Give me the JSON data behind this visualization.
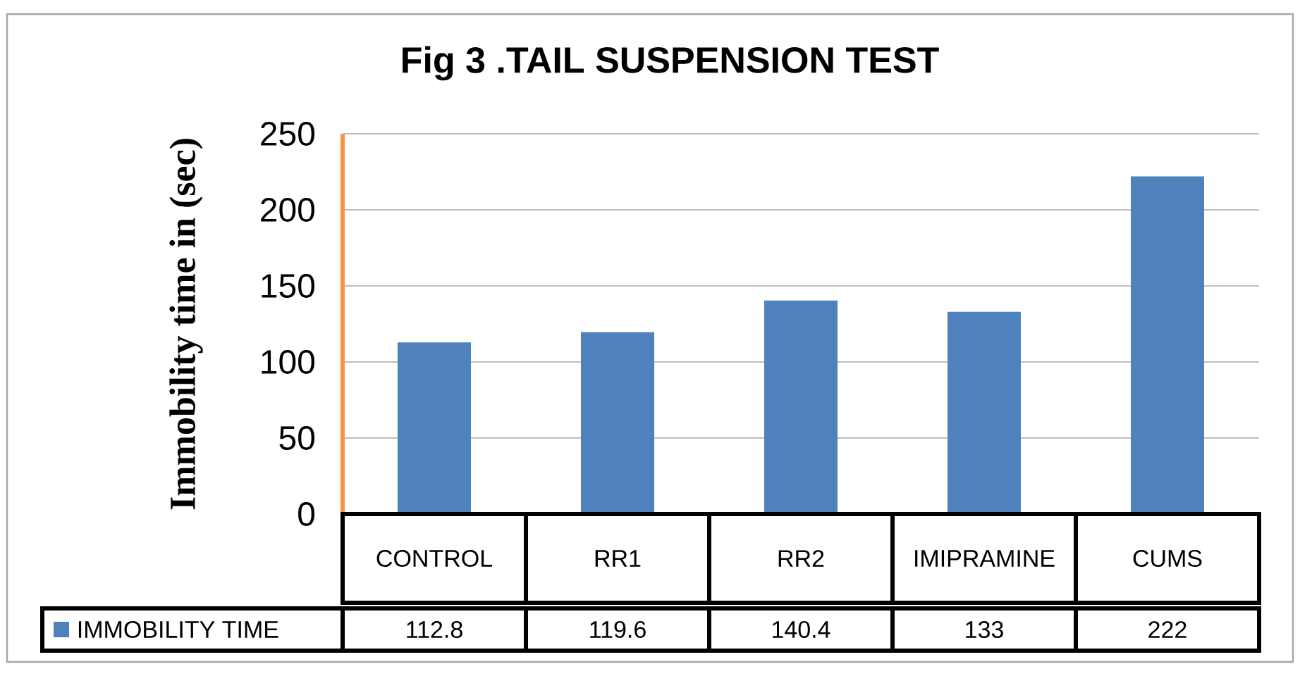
{
  "chart_data": {
    "type": "bar",
    "title": "Fig 3 .TAIL SUSPENSION TEST",
    "ylabel": "Immobility time in (sec)",
    "categories": [
      "CONTROL",
      "RR1",
      "RR2",
      "IMIPRAMINE",
      "CUMS"
    ],
    "series": [
      {
        "name": "IMMOBILITY TIME",
        "color": "#4f81bd",
        "values": [
          112.8,
          119.6,
          140.4,
          133,
          222
        ]
      }
    ],
    "ylim": [
      0,
      250
    ],
    "yticks": [
      0,
      50,
      100,
      150,
      200,
      250
    ],
    "grid": "y",
    "legend": "bottom left",
    "data_labels": true
  }
}
